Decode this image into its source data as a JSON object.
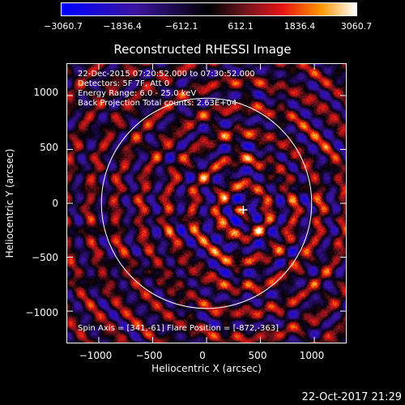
{
  "colorbar": {
    "ticks": [
      "−3060.7",
      "−1836.4",
      "−612.1",
      "612.1",
      "1836.4",
      "3060.7"
    ],
    "tick_fractions": [
      0.0,
      0.2,
      0.4,
      0.6,
      0.8,
      1.0
    ]
  },
  "title": "Reconstructed RHESSI Image",
  "annotations": {
    "time": "22-Dec-2015 07:20:52.000 to 07:30:52.000",
    "detectors": "Detectors: 5F 7F, Att 0",
    "energy": "Energy Range: 6.0 - 25.0 keV",
    "method": "Back Projection    Total counts: 2.63E+04",
    "spin": "Spin Axis = [341,-61]     Flare Position = [-872,-363]"
  },
  "axes": {
    "xlabel": "Heliocentric X (arcsec)",
    "ylabel": "Heliocentric Y (arcsec)",
    "xlim": [
      -1300,
      1300
    ],
    "ylim": [
      -1300,
      1300
    ],
    "xticks": [
      "−1000",
      "−500",
      "0",
      "500",
      "1000"
    ],
    "xtick_values": [
      -1000,
      -500,
      0,
      500,
      1000
    ],
    "yticks": [
      "1000",
      "500",
      "0",
      "−500",
      "−1000"
    ],
    "ytick_values": [
      1000,
      500,
      0,
      -500,
      -1000
    ]
  },
  "limb": {
    "radius_arcsec": 975,
    "center": [
      0,
      0
    ]
  },
  "marker": {
    "x": 341,
    "y": -61,
    "symbol": "+"
  },
  "footer": "22-Oct-2017 21:29",
  "colors": {
    "limb": "#ffffff",
    "background": "#000000"
  }
}
